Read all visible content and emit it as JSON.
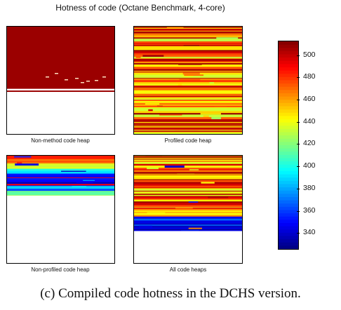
{
  "figure": {
    "title": "Hotness of code (Octane Benchmark, 4-core)",
    "caption": "(c) Compiled code hotness in the DCHS version."
  },
  "chart_data": {
    "type": "heatmap",
    "colormap": "jet",
    "colorbar": {
      "range": [
        325,
        513
      ],
      "ticks": [
        340,
        360,
        380,
        400,
        420,
        440,
        460,
        480,
        500
      ]
    },
    "panels": [
      {
        "label": "Non-method code heap",
        "description_values": "mostly saturated (max) hotness across the upper ~60% of the heap with a few isolated cooler cells; a thin hot line near 60%; remainder unused",
        "bands": [
          {
            "from": 0.0,
            "to": 0.49,
            "value": 508
          },
          {
            "from": 0.49,
            "to": 0.51,
            "value": 508
          },
          {
            "from": 0.51,
            "to": 0.58,
            "value": 508
          },
          {
            "from": 0.595,
            "to": 0.62,
            "value": 508
          }
        ],
        "used_fraction": 0.62
      },
      {
        "label": "Profiled code heap",
        "used_fraction": 1.0,
        "value_range": [
          425,
          510
        ]
      },
      {
        "label": "Non-profiled code heap",
        "used_fraction": 0.37,
        "value_range": [
          330,
          510
        ]
      },
      {
        "label": "All code heaps",
        "used_fraction": 0.7,
        "value_range": [
          330,
          510
        ]
      }
    ]
  }
}
